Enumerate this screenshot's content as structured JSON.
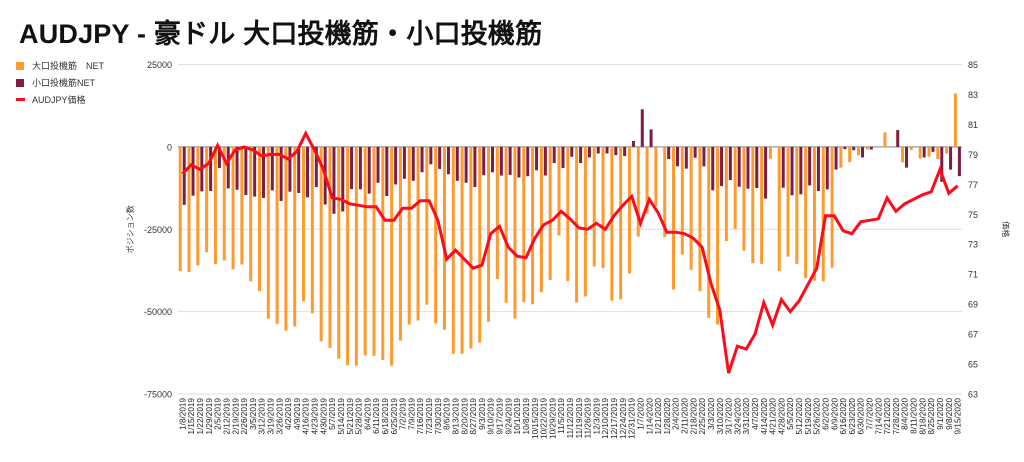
{
  "title": "AUDJPY - 豪ドル 大口投機筋・小口投機筋",
  "chart_data": {
    "type": "bar+line",
    "title": "AUDJPY - 豪ドル 大口投機筋・小口投機筋",
    "ylabel": "ポジション数",
    "y2label": "価格",
    "ylim": [
      -75000,
      25000
    ],
    "yticks": [
      25000,
      0,
      -25000,
      -50000,
      -75000
    ],
    "y2lim": [
      63,
      85
    ],
    "y2ticks": [
      85,
      83,
      81,
      79,
      77,
      75,
      73,
      71,
      69,
      67,
      65,
      63
    ],
    "grid": true,
    "legend_position": "top-left",
    "colors": {
      "large": "#ff9a2e",
      "small": "#7d1c44",
      "price": "#ff0a1a"
    },
    "x": [
      "1/8/2019",
      "1/15/2019",
      "1/22/2019",
      "1/29/2019",
      "2/5/2019",
      "2/12/2019",
      "2/19/2019",
      "2/26/2019",
      "3/5/2019",
      "3/12/2019",
      "3/19/2019",
      "3/26/2019",
      "4/2/2019",
      "4/9/2019",
      "4/16/2019",
      "4/23/2019",
      "4/30/2019",
      "5/7/2019",
      "5/14/2019",
      "5/21/2019",
      "5/28/2019",
      "6/4/2019",
      "6/11/2019",
      "6/18/2019",
      "6/25/2019",
      "7/2/2019",
      "7/9/2019",
      "7/16/2019",
      "7/23/2019",
      "7/30/2019",
      "8/6/2019",
      "8/13/2019",
      "8/20/2019",
      "8/27/2019",
      "9/3/2019",
      "9/10/2019",
      "9/17/2019",
      "9/24/2019",
      "10/1/2019",
      "10/8/2019",
      "10/15/2019",
      "10/22/2019",
      "10/29/2019",
      "11/5/2019",
      "11/12/2019",
      "11/19/2019",
      "11/26/2019",
      "12/3/2019",
      "12/10/2019",
      "12/17/2019",
      "12/24/2019",
      "12/31/2019",
      "1/7/2020",
      "1/14/2020",
      "1/21/2020",
      "1/28/2020",
      "2/4/2020",
      "2/11/2020",
      "2/18/2020",
      "2/25/2020",
      "3/3/2020",
      "3/10/2020",
      "3/17/2020",
      "3/24/2020",
      "3/31/2020",
      "4/7/2020",
      "4/14/2020",
      "4/21/2020",
      "4/28/2020",
      "5/5/2020",
      "5/12/2020",
      "5/19/2020",
      "5/26/2020",
      "6/2/2020",
      "6/9/2020",
      "6/16/2020",
      "6/23/2020",
      "6/30/2020",
      "7/7/2020",
      "7/14/2020",
      "7/21/2020",
      "7/28/2020",
      "8/4/2020",
      "8/11/2020",
      "8/18/2020",
      "8/25/2020",
      "9/1/2020",
      "9/8/2020",
      "9/15/2020"
    ],
    "series": [
      {
        "name": "大口投機筋　NET",
        "type": "bar",
        "axis": "left",
        "values": [
          -37700,
          -38000,
          -36000,
          -32000,
          -35600,
          -34500,
          -37200,
          -35700,
          -40800,
          -43800,
          -52100,
          -53700,
          -55800,
          -54500,
          -46900,
          -50500,
          -59000,
          -61000,
          -64300,
          -66300,
          -66400,
          -63300,
          -63400,
          -64700,
          -66400,
          -58800,
          -53900,
          -52700,
          -47900,
          -53600,
          -55500,
          -62800,
          -62800,
          -61200,
          -59400,
          -53100,
          -40100,
          -47300,
          -52100,
          -47100,
          -47800,
          -44100,
          -40400,
          -26900,
          -40700,
          -47200,
          -45400,
          -36300,
          -36800,
          -46700,
          -46300,
          -38400,
          -27200,
          -20300,
          -18000,
          -27400,
          -43300,
          -32700,
          -37300,
          -43800,
          -51900,
          -53900,
          -28600,
          -24900,
          -31500,
          -35300,
          -35500,
          -3600,
          -37700,
          -33300,
          -35500,
          -39800,
          -40600,
          -40800,
          -36700,
          -6300,
          -4600,
          -2600,
          -800,
          0,
          4400,
          0,
          -4700,
          -1000,
          -3500,
          -3000,
          -3700,
          -2000,
          16200
        ]
      },
      {
        "name": "小口投機筋NET",
        "type": "bar",
        "axis": "left",
        "values": [
          -17600,
          -14800,
          -13500,
          -13400,
          -6400,
          -12600,
          -13000,
          -14600,
          -15100,
          -15500,
          -13200,
          -16400,
          -13600,
          -14000,
          -15300,
          -12200,
          -17500,
          -20300,
          -19600,
          -12800,
          -12900,
          -14200,
          -10900,
          -14900,
          -11400,
          -9700,
          -10300,
          -7700,
          -5300,
          -6700,
          -8300,
          -10300,
          -10900,
          -12200,
          -8600,
          -7700,
          -8700,
          -8500,
          -9300,
          -8900,
          -7100,
          -8700,
          -4900,
          -6400,
          -3000,
          -4900,
          -3200,
          -2000,
          -2000,
          -2500,
          -2800,
          1800,
          11400,
          5300,
          0,
          -3700,
          -5900,
          -6600,
          -3300,
          -5900,
          -13200,
          -11900,
          -10100,
          -12100,
          -12700,
          -12500,
          -15700,
          0,
          -12400,
          -14700,
          -14400,
          -11700,
          -13400,
          -12900,
          -6900,
          -700,
          -1000,
          -3200,
          -800,
          0,
          0,
          5100,
          -6300,
          0,
          -3200,
          -1500,
          -10600,
          -6900,
          -8900
        ]
      },
      {
        "name": "AUDJPY価格",
        "type": "line",
        "axis": "right",
        "values": [
          77.7,
          78.3,
          78.0,
          78.4,
          79.6,
          78.4,
          79.3,
          79.5,
          79.3,
          78.9,
          79.0,
          79.0,
          78.7,
          79.2,
          80.4,
          79.3,
          78.0,
          76.1,
          76.0,
          75.7,
          75.6,
          75.5,
          75.5,
          74.6,
          74.6,
          75.4,
          75.4,
          75.9,
          75.9,
          74.6,
          72.0,
          72.6,
          72.0,
          71.4,
          71.6,
          73.7,
          74.2,
          72.8,
          72.2,
          72.1,
          73.4,
          74.3,
          74.6,
          75.2,
          74.7,
          74.1,
          74.0,
          74.4,
          74.0,
          74.9,
          75.6,
          76.2,
          74.4,
          76.0,
          75.1,
          73.8,
          73.8,
          73.7,
          73.4,
          72.8,
          70.4,
          68.6,
          64.4,
          66.2,
          66.0,
          67.0,
          69.1,
          67.6,
          69.3,
          68.5,
          69.2,
          70.3,
          71.4,
          74.9,
          74.9,
          73.9,
          73.7,
          74.5,
          74.6,
          74.7,
          76.1,
          75.2,
          75.7,
          76.0,
          76.3,
          76.5,
          78.0,
          76.4,
          76.9
        ]
      }
    ]
  }
}
